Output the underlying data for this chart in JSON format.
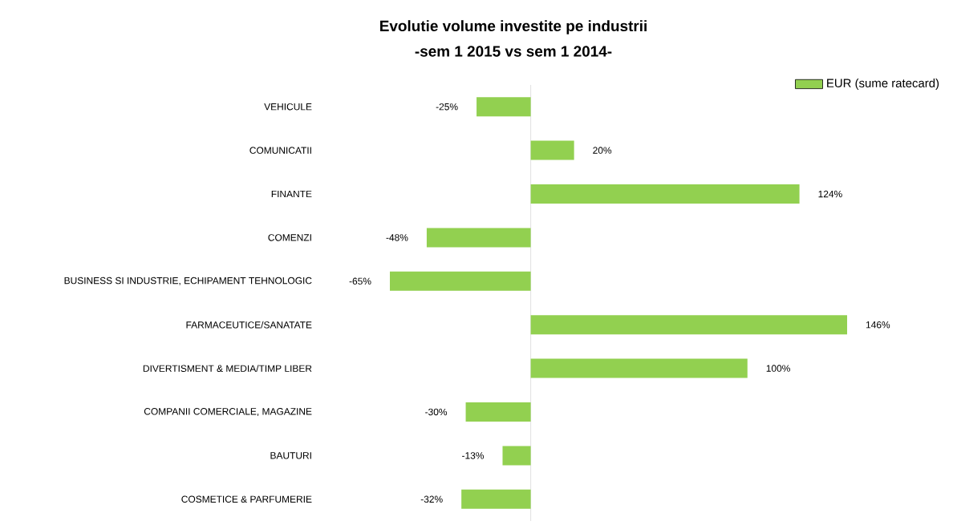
{
  "chart_data": {
    "type": "bar",
    "orientation": "horizontal",
    "title": "Evolutie volume investite pe industrii",
    "subtitle": "-sem 1 2015 vs sem 1 2014-",
    "categories": [
      "VEHICULE",
      "COMUNICATII",
      "FINANTE",
      "COMENZI",
      "BUSINESS SI INDUSTRIE, ECHIPAMENT TEHNOLOGIC",
      "FARMACEUTICE/SANATATE",
      "DIVERTISMENT & MEDIA/TIMP LIBER",
      "COMPANII COMERCIALE, MAGAZINE",
      "BAUTURI",
      "COSMETICE & PARFUMERIE"
    ],
    "series": [
      {
        "name": "EUR (sume ratecard)",
        "color": "#92d050",
        "values": [
          -25,
          20,
          124,
          -48,
          -65,
          146,
          100,
          -30,
          -13,
          -32
        ],
        "value_labels": [
          "-25%",
          "20%",
          "124%",
          "-48%",
          "-65%",
          "146%",
          "100%",
          "-30%",
          "-13%",
          "-32%"
        ]
      }
    ],
    "legend": "top right"
  }
}
